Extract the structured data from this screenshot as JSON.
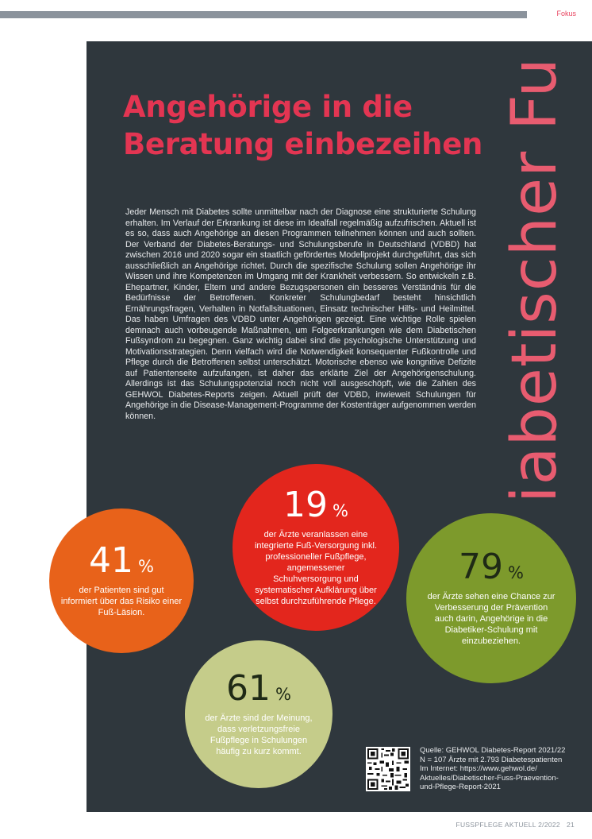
{
  "header": {
    "section_label": "Fokus"
  },
  "article": {
    "headline": "Angehörige in die Beratung einbezeihen",
    "vertical_title": "Diabetischer Fuß",
    "body": "Jeder Mensch mit Diabetes sollte unmittelbar nach der Diagnose eine strukturierte Schulung erhalten. Im Verlauf der Erkrankung ist diese im Idealfall regelmäßig aufzufrischen. Aktuell ist es so, dass auch Angehörige an diesen Programmen teilnehmen können und auch sollten. Der Verband der Diabetes-Beratungs- und Schulungsberufe in Deutschland (VDBD) hat zwischen 2016 und 2020 sogar ein staatlich gefördertes Modellprojekt durchgeführt, das sich ausschließlich an Angehörige richtet. Durch die spezifische Schulung sollen Angehörige ihr Wissen und ihre Kompetenzen im Umgang mit der Krankheit verbessern. So entwickeln z.B. Ehepartner, Kinder, Eltern und andere Bezugspersonen ein besseres Verständnis für die Bedürfnisse der Betroffenen. Konkreter Schulungbedarf besteht hinsichtlich Ernährungsfragen, Verhalten in Notfallsituationen, Einsatz technischer Hilfs- und Heilmittel. Das haben Umfragen des VDBD unter Angehörigen gezeigt. Eine wichtige Rolle spielen demnach auch vorbeugende Maßnahmen, um Folgeerkrankungen wie dem Diabetischen Fußsyndrom zu begegnen. Ganz wichtig dabei sind die psychologische Unterstützung und Motivationsstrategien. Denn vielfach wird die Notwendigkeit konsequenter Fußkontrolle und Pflege durch die Betroffenen selbst unterschätzt. Motorische ebenso wie kongnitive Defizite auf Patientenseite aufzufangen, ist daher das erklärte Ziel der Angehörigenschulung. Allerdings ist das Schulungspotenzial noch nicht voll ausgeschöpft, wie die Zahlen des GEHWOL Diabetes-Reports zeigen. Aktuell prüft der VDBD, inwieweit Schulungen für Angehörige in die Disease-Management-Programme der Kostenträger aufgenommen werden können."
  },
  "stats": {
    "s41": {
      "value": "41",
      "unit": "%",
      "text": "der Patienten sind gut informiert über das Risiko einer Fuß-Läsion."
    },
    "s19": {
      "value": "19",
      "unit": "%",
      "text": "der Ärzte veranlassen eine integrierte Fuß-Versorgung inkl. professioneller Fußpflege, angemessener Schuhversorgung und systematischer Aufklärung über selbst durchzuführende Pflege."
    },
    "s79": {
      "value": "79",
      "unit": "%",
      "text": "der Ärzte sehen eine Chance zur Verbesserung der Prävention auch darin, Angehörige in die Diabetiker-Schulung mit einzubeziehen."
    },
    "s61": {
      "value": "61",
      "unit": "%",
      "text": "der Ärzte sind der Meinung, dass verletzungsfreie Fußpflege in Schulungen häufig zu kurz kommt."
    }
  },
  "source": {
    "line1": "Quelle: GEHWOL Diabetes-Report 2021/22",
    "line2": "N = 107 Ärzte mit 2.793 Diabetespatienten",
    "line3": "Im Internet: https://www.gehwol.de/",
    "line4": "Aktuelles/Diabetischer-Fuss-Praevention-",
    "line5": "und-Pflege-Report-2021"
  },
  "footer": {
    "magazine": "FUSSPFLEGE AKTUELL 2/2022",
    "page": "21"
  },
  "colors": {
    "panel": "#2f373d",
    "headline": "#e33552",
    "orange": "#e8621a",
    "red": "#e3261d",
    "green": "#7d9a2c",
    "pale_green": "#c5cc8a"
  }
}
